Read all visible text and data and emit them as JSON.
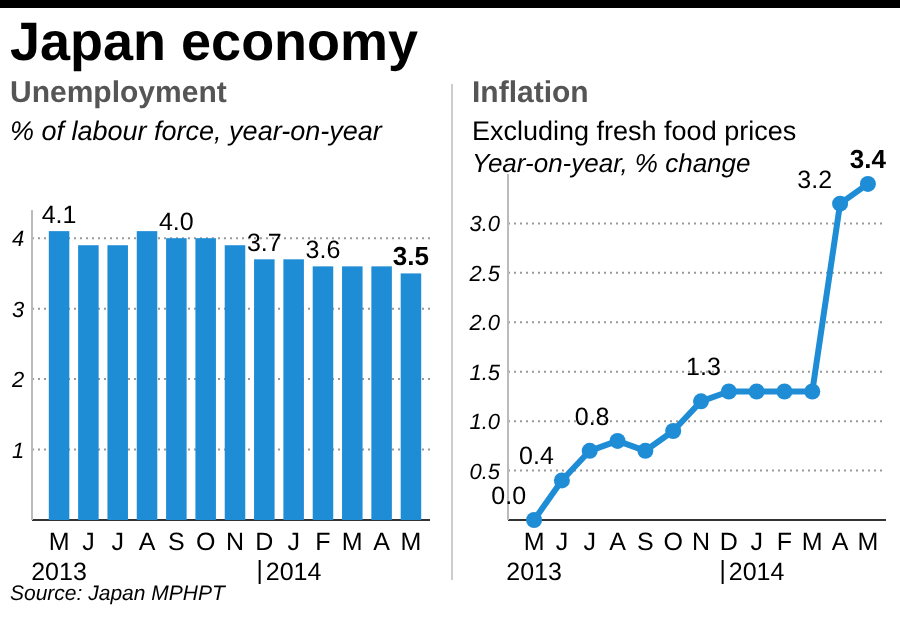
{
  "chart_data": [
    {
      "type": "bar",
      "title": "Japan economy",
      "subtitle": "Unemployment",
      "ylabel": "% of labour force, year-on-year",
      "categories": [
        "M\n2013",
        "J",
        "J",
        "A",
        "S",
        "O",
        "N",
        "D",
        "J\n2014",
        "F",
        "M",
        "A",
        "M"
      ],
      "values": [
        4.1,
        3.9,
        3.9,
        4.1,
        4.0,
        4.0,
        3.9,
        3.7,
        3.7,
        3.6,
        3.6,
        3.6,
        3.5
      ],
      "value_labels": [
        "4.1",
        null,
        null,
        null,
        "4.0",
        null,
        null,
        "3.7",
        null,
        "3.6",
        null,
        null,
        "3.5"
      ],
      "color": "#1f8dd6",
      "ylim": [
        0,
        4.4
      ],
      "yticks": [
        1,
        2,
        3,
        4
      ],
      "grid": "y",
      "annotations": [
        "Source: Japan MPHPT"
      ]
    },
    {
      "type": "line",
      "title": "Inflation",
      "subtitle": "Excluding fresh food prices",
      "ylabel": "Year-on-year, % change",
      "categories": [
        "M\n2013",
        "J",
        "J",
        "A",
        "S",
        "O",
        "N",
        "D",
        "J\n2014",
        "F",
        "M",
        "A",
        "M"
      ],
      "values": [
        0.0,
        0.4,
        0.7,
        0.8,
        0.7,
        0.9,
        1.2,
        1.3,
        1.3,
        1.3,
        1.3,
        3.2,
        3.4
      ],
      "value_labels": [
        "0.0",
        "0.4",
        null,
        "0.8",
        null,
        null,
        null,
        "1.3",
        null,
        null,
        null,
        "3.2",
        "3.4"
      ],
      "color": "#1f8dd6",
      "ylim": [
        0,
        3.5
      ],
      "yticks": [
        {
          "value": 0.5,
          "label": "0.5"
        },
        {
          "value": 1.0,
          "label": "1.0"
        },
        {
          "value": 1.5,
          "label": "1.5"
        },
        {
          "value": 2.0,
          "label": "2.0"
        },
        {
          "value": 2.5,
          "label": "2.5"
        },
        {
          "value": 3.0,
          "label": "3.0"
        }
      ],
      "grid": "y",
      "marker": "circle"
    }
  ]
}
